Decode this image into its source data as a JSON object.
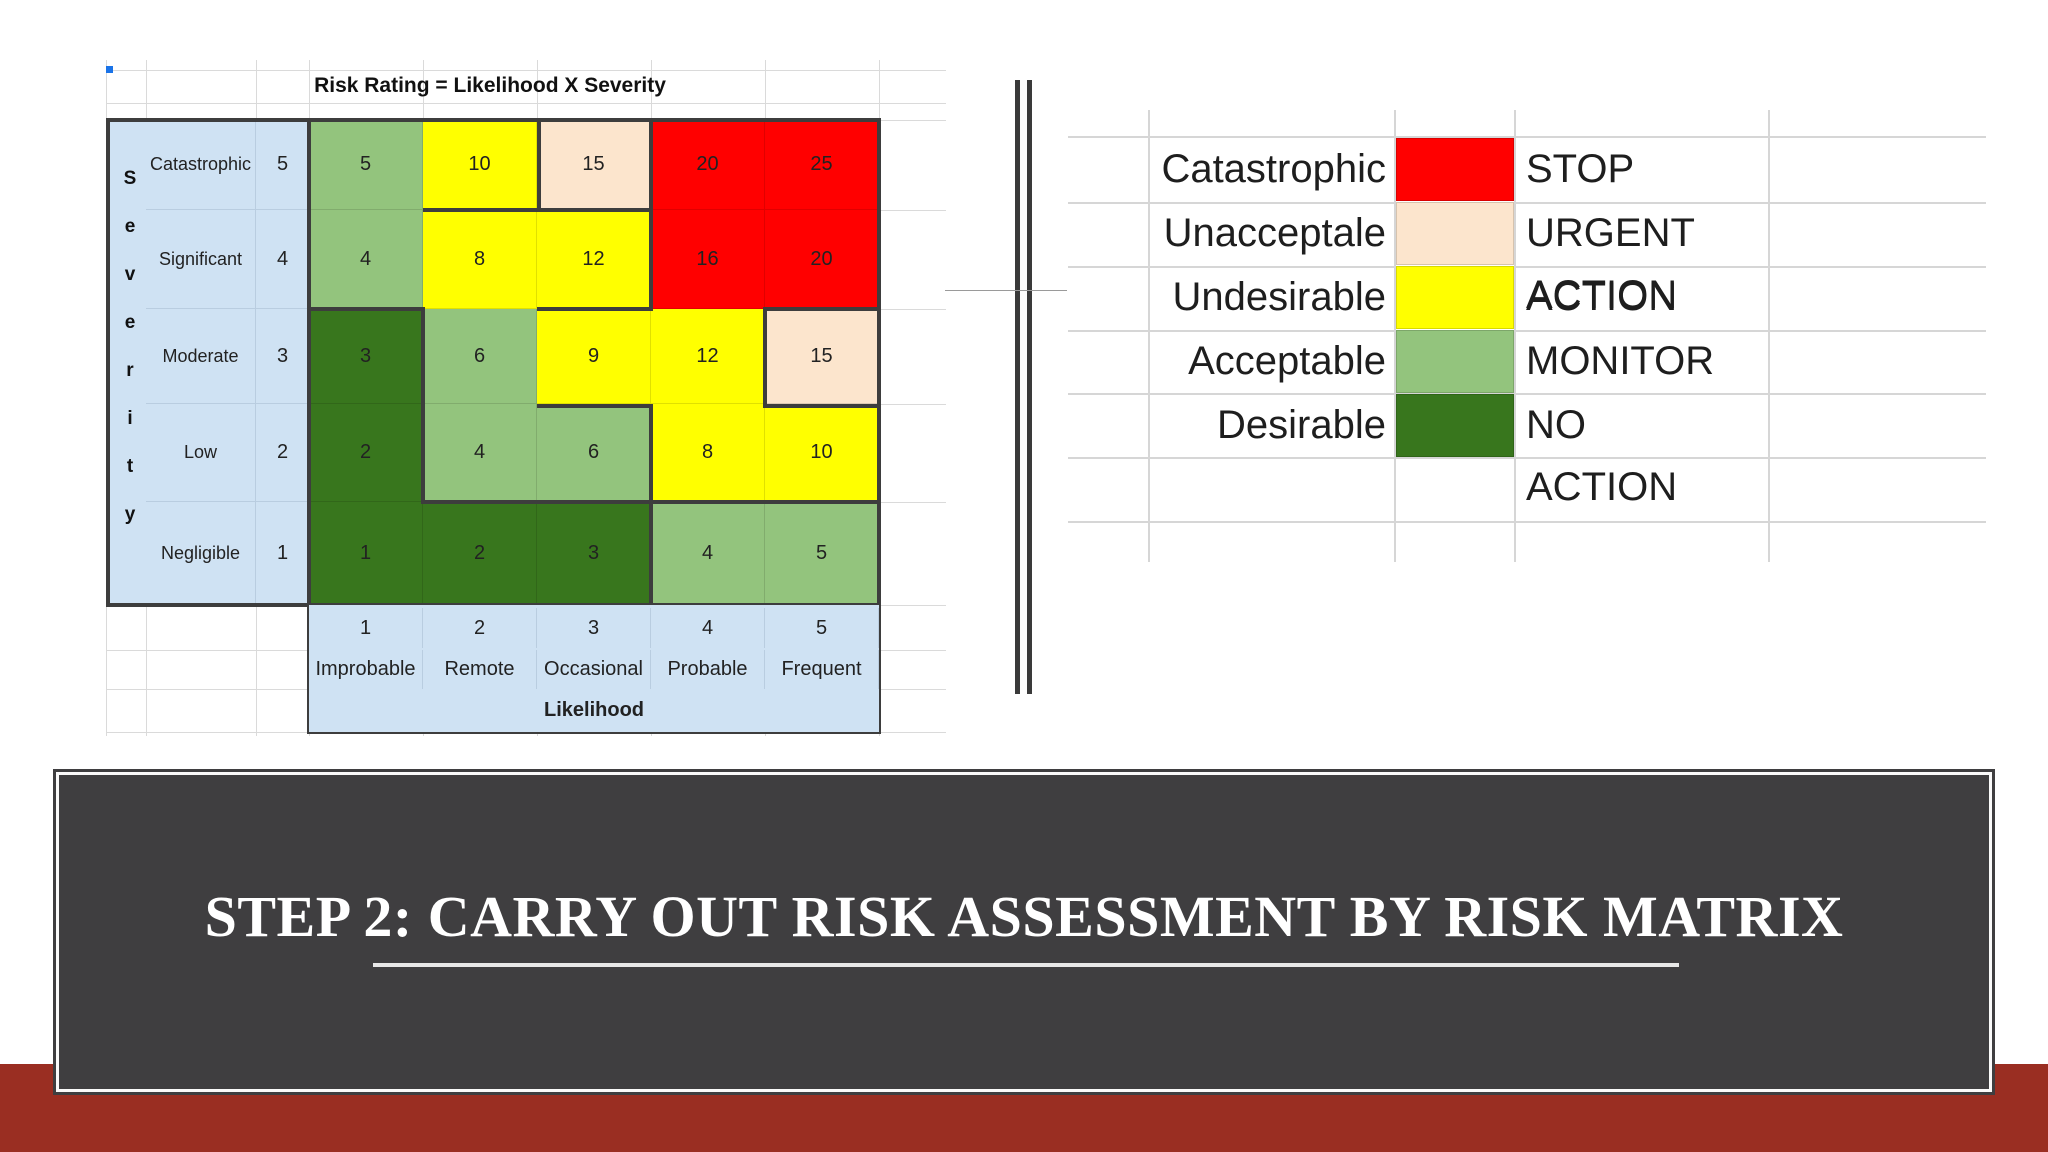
{
  "matrix": {
    "title": "Risk Rating = Likelihood X Severity",
    "severity_letters": [
      "S",
      "e",
      "v",
      "e",
      "r",
      "i",
      "t",
      "y"
    ],
    "severity_rows": [
      {
        "label": "Catastrophic",
        "value": "5",
        "cells": [
          "5",
          "10",
          "15",
          "20",
          "25"
        ],
        "colors": [
          "#93c47d",
          "#ffff00",
          "#fce5cd",
          "#ff0000",
          "#ff0000"
        ]
      },
      {
        "label": "Significant",
        "value": "4",
        "cells": [
          "4",
          "8",
          "12",
          "16",
          "20"
        ],
        "colors": [
          "#93c47d",
          "#ffff00",
          "#ffff00",
          "#ff0000",
          "#ff0000"
        ]
      },
      {
        "label": "Moderate",
        "value": "3",
        "cells": [
          "3",
          "6",
          "9",
          "12",
          "15"
        ],
        "colors": [
          "#38761d",
          "#93c47d",
          "#ffff00",
          "#ffff00",
          "#fce5cd"
        ]
      },
      {
        "label": "Low",
        "value": "2",
        "cells": [
          "2",
          "4",
          "6",
          "8",
          "10"
        ],
        "colors": [
          "#38761d",
          "#93c47d",
          "#93c47d",
          "#ffff00",
          "#ffff00"
        ]
      },
      {
        "label": "Negligible",
        "value": "1",
        "cells": [
          "1",
          "2",
          "3",
          "4",
          "5"
        ],
        "colors": [
          "#38761d",
          "#38761d",
          "#38761d",
          "#93c47d",
          "#93c47d"
        ]
      }
    ],
    "likelihood_values": [
      "1",
      "2",
      "3",
      "4",
      "5"
    ],
    "likelihood_labels": [
      "Improbable",
      "Remote",
      "Occasional",
      "Probable",
      "Frequent"
    ],
    "likelihood_title": "Likelihood"
  },
  "legend": [
    {
      "name": "Catastrophic",
      "color": "#ff0000",
      "action": "STOP"
    },
    {
      "name": "Unacceptale",
      "color": "#fce5cd",
      "action": "URGENT ACTION"
    },
    {
      "name": "Undesirable",
      "color": "#ffff00",
      "action": "ACTION"
    },
    {
      "name": "Acceptable",
      "color": "#93c47d",
      "action": "MONITOR"
    },
    {
      "name": "Desirable",
      "color": "#38761d",
      "action": "NO ACTION"
    }
  ],
  "banner": {
    "title": "STEP 2: CARRY OUT RISK ASSESSMENT BY RISK MATRIX"
  },
  "colors": {
    "banner_bg": "#3f3e40",
    "bottom_band": "#9a2e22",
    "label_bg": "#cfe2f3"
  }
}
